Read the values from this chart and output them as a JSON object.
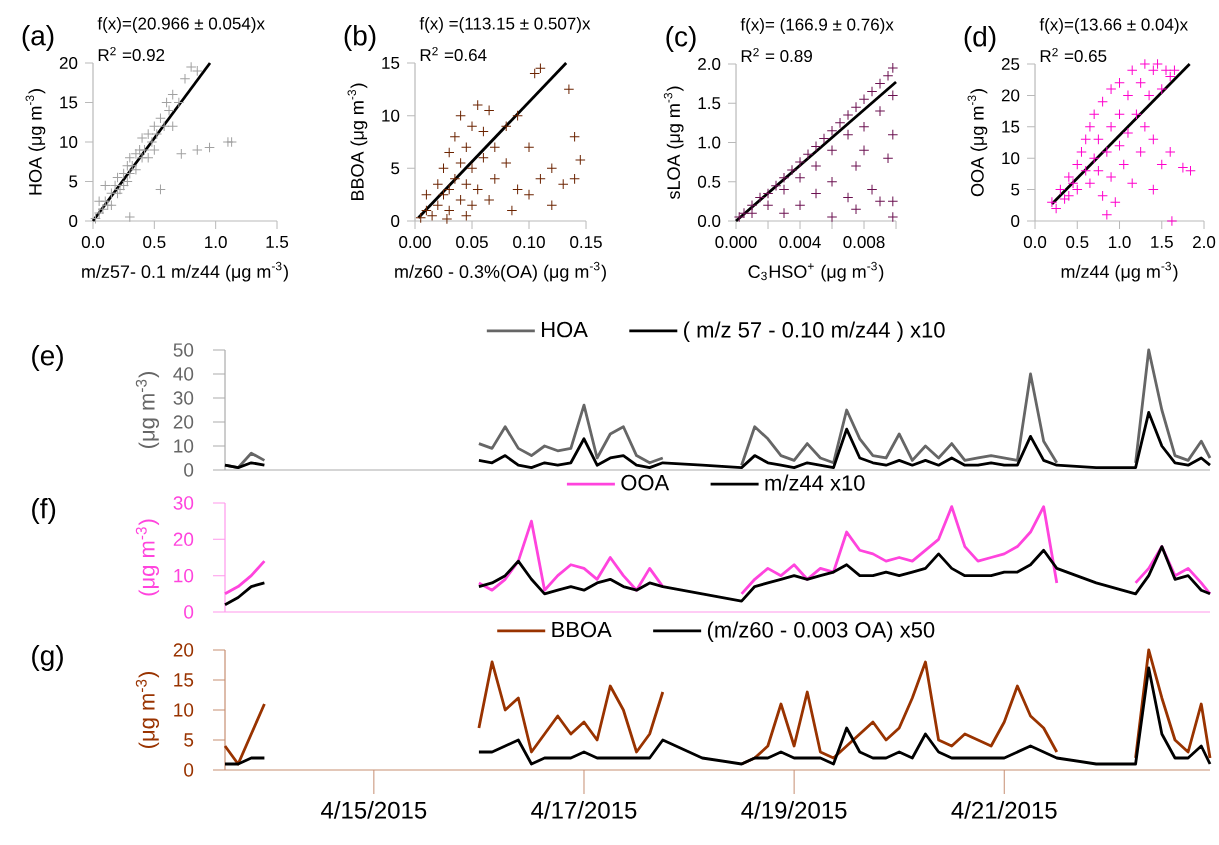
{
  "chart_data": [
    {
      "type": "scatter",
      "xlabel": "m/z57- 0.1 m/z44 (μg m$^{-3}$)",
      "ylabel": "HOA  (μg m$^{-3}$)",
      "annotations": [
        "(a)",
        "f(x)=(20.966 ± 0.054)x",
        "R$^{2}$ =0.92"
      ],
      "xlim": [
        0,
        1.5
      ],
      "ylim": [
        0,
        20
      ],
      "xticks": [
        {
          "value": 0,
          "label": "0.0"
        },
        0.5,
        {
          "value": 1,
          "label": "1.0"
        },
        1.5
      ],
      "yticks": [
        0,
        5,
        10,
        15,
        20
      ],
      "series": [
        {
          "type": "scatter",
          "marker": "cross",
          "color": "#a0a0a0",
          "x": [
            0.02,
            0.05,
            0.08,
            0.1,
            0.12,
            0.15,
            0.15,
            0.18,
            0.2,
            0.2,
            0.22,
            0.25,
            0.25,
            0.28,
            0.28,
            0.3,
            0.3,
            0.32,
            0.35,
            0.35,
            0.38,
            0.4,
            0.4,
            0.42,
            0.45,
            0.45,
            0.48,
            0.5,
            0.5,
            0.52,
            0.55,
            0.58,
            0.6,
            0.62,
            0.65,
            0.65,
            0.7,
            0.75,
            0.8,
            0.85,
            0.1,
            0.05,
            0.3,
            0.55,
            0.72,
            0.85,
            0.95,
            1.1,
            1.13
          ],
          "values": [
            0.3,
            1,
            1.5,
            2.5,
            2,
            3.5,
            2,
            4.5,
            3.5,
            5.5,
            4,
            6,
            4.5,
            5,
            7,
            6,
            8,
            7,
            8.5,
            6.5,
            9,
            8,
            10.5,
            9,
            11,
            8,
            10,
            12,
            9,
            11,
            13,
            12,
            15,
            14,
            12,
            16,
            15,
            18,
            19.5,
            19,
            4.5,
            2.5,
            0.5,
            4,
            8.5,
            9,
            9.3,
            10,
            10
          ]
        },
        {
          "type": "line",
          "color": "#000000",
          "x": [
            0,
            0.954
          ],
          "values": [
            0,
            20
          ]
        }
      ]
    },
    {
      "type": "scatter",
      "xlabel": "m/z60 - 0.3%(OA)  (μg m$^{-3}$)",
      "ylabel": "BBOA  (μg m$^{-3}$)",
      "annotations": [
        "(b)",
        "f(x) =(113.15 ± 0.507)x",
        "R$^{2}$ =0.64"
      ],
      "xlim": [
        0,
        0.15
      ],
      "ylim": [
        0,
        15
      ],
      "xticks": [
        {
          "value": 0,
          "label": "0.00"
        },
        0.05,
        {
          "value": 0.1,
          "label": "0.10"
        },
        0.15
      ],
      "yticks": [
        0,
        5,
        10,
        15
      ],
      "series": [
        {
          "type": "scatter",
          "marker": "cross",
          "color": "#6b2300",
          "x": [
            0.005,
            0.01,
            0.01,
            0.015,
            0.02,
            0.02,
            0.025,
            0.025,
            0.03,
            0.03,
            0.03,
            0.035,
            0.035,
            0.04,
            0.04,
            0.04,
            0.045,
            0.045,
            0.05,
            0.05,
            0.05,
            0.055,
            0.055,
            0.06,
            0.06,
            0.065,
            0.065,
            0.07,
            0.07,
            0.08,
            0.08,
            0.085,
            0.09,
            0.09,
            0.1,
            0.1,
            0.105,
            0.11,
            0.11,
            0.12,
            0.12,
            0.13,
            0.135,
            0.14,
            0.145,
            0.14,
            0.028,
            0.045
          ],
          "values": [
            0.3,
            1,
            2.5,
            0.5,
            1.5,
            3.5,
            2.5,
            5,
            1,
            3,
            6.5,
            4,
            8,
            2,
            5.5,
            10,
            3.5,
            7,
            1.5,
            5,
            9,
            3,
            11,
            6,
            8.5,
            2,
            10.5,
            4,
            7,
            5.5,
            9,
            1,
            3,
            10,
            7,
            2.5,
            14,
            14.5,
            4,
            5,
            1.5,
            3.5,
            12.5,
            8,
            5.8,
            4,
            0.2,
            0.5
          ]
        },
        {
          "type": "line",
          "color": "#000000",
          "x": [
            0.003,
            0.1326
          ],
          "values": [
            0.3,
            15
          ]
        }
      ]
    },
    {
      "type": "scatter",
      "xlabel": "C$_{3}$HSO$^{+}$ (μg m$^{-3}$)",
      "ylabel": "sLOA  (μg m$^{-3}$)",
      "annotations": [
        "(c)",
        "f(x)= (166.9 ± 0.76)x",
        "R$^{2}$ = 0.89"
      ],
      "xlim": [
        0,
        0.01
      ],
      "ylim": [
        0,
        2
      ],
      "xticks": [
        {
          "value": 0,
          "label": "0.000"
        },
        {
          "value": 0.002,
          "label": null
        },
        0.004,
        {
          "value": 0.006,
          "label": null
        },
        0.008,
        {
          "value": 0.01,
          "label": null
        }
      ],
      "yticks": [
        {
          "value": 0,
          "label": "0.0"
        },
        0.5,
        {
          "value": 1,
          "label": "1.0"
        },
        1.5,
        {
          "value": 2,
          "label": "2.0"
        }
      ],
      "series": [
        {
          "type": "scatter",
          "marker": "cross",
          "color": "#6b1050",
          "x": [
            0.0002,
            0.0005,
            0.001,
            0.001,
            0.0015,
            0.002,
            0.002,
            0.0025,
            0.003,
            0.003,
            0.0035,
            0.004,
            0.004,
            0.0045,
            0.005,
            0.005,
            0.0055,
            0.006,
            0.006,
            0.0065,
            0.007,
            0.007,
            0.0075,
            0.008,
            0.008,
            0.0085,
            0.009,
            0.009,
            0.0095,
            0.0098,
            0.0098,
            0.003,
            0.004,
            0.005,
            0.006,
            0.007,
            0.0075,
            0.008,
            0.0085,
            0.009,
            0.0095,
            0.0098,
            0.0098,
            0.0098,
            0.0075,
            0.006
          ],
          "values": [
            0.05,
            0.1,
            0.2,
            0.1,
            0.3,
            0.35,
            0.2,
            0.45,
            0.55,
            0.4,
            0.65,
            0.75,
            0.55,
            0.85,
            0.95,
            0.7,
            1.05,
            1.15,
            0.9,
            1.25,
            1.35,
            1.1,
            1.45,
            1.55,
            1.2,
            1.65,
            1.75,
            1.4,
            1.85,
            1.95,
            1.6,
            0.1,
            0.2,
            0.35,
            0.5,
            0.3,
            0.7,
            0.9,
            0.4,
            0.25,
            0.8,
            0.05,
            0.25,
            1.1,
            0.15,
            0.05
          ]
        },
        {
          "type": "line",
          "color": "#000000",
          "x": [
            0,
            0.01
          ],
          "values": [
            0,
            1.77
          ]
        }
      ]
    },
    {
      "type": "scatter",
      "xlabel": "m/z44   (μg m$^{-3}$)",
      "ylabel": "OOA (μg m$^{-3}$)",
      "annotations": [
        "(d)",
        "f(x)=(13.66 ± 0.04)x",
        "R$^{2}$ =0.65"
      ],
      "xlim": [
        0,
        2
      ],
      "ylim": [
        0,
        25
      ],
      "xticks": [
        {
          "value": 0,
          "label": "0.0"
        },
        0.5,
        {
          "value": 1,
          "label": "1.0"
        },
        1.5,
        {
          "value": 2,
          "label": "2.0"
        }
      ],
      "yticks": [
        0,
        5,
        10,
        15,
        20,
        25
      ],
      "series": [
        {
          "type": "scatter",
          "marker": "cross",
          "color": "#ff00cc",
          "x": [
            0.2,
            0.25,
            0.3,
            0.35,
            0.4,
            0.4,
            0.45,
            0.5,
            0.5,
            0.55,
            0.6,
            0.6,
            0.65,
            0.65,
            0.7,
            0.7,
            0.75,
            0.75,
            0.8,
            0.8,
            0.85,
            0.85,
            0.9,
            0.9,
            0.9,
            0.95,
            1.0,
            1.0,
            1.0,
            1.05,
            1.1,
            1.1,
            1.15,
            1.15,
            1.2,
            1.25,
            1.25,
            1.3,
            1.3,
            1.35,
            1.4,
            1.4,
            1.45,
            1.5,
            1.55,
            1.6,
            1.6,
            1.65,
            1.5,
            1.4,
            1.75,
            1.84,
            1.62
          ],
          "values": [
            3,
            2,
            5,
            3.5,
            7,
            4,
            6,
            9,
            5,
            11,
            8,
            13,
            6,
            15,
            10,
            17,
            8,
            13,
            19,
            4,
            11,
            1,
            15,
            21,
            7,
            3,
            12,
            22,
            17,
            9,
            20,
            14,
            24,
            6,
            17,
            22,
            11,
            25,
            15,
            20,
            24,
            13,
            25,
            21,
            24,
            23,
            11,
            24,
            9,
            5,
            8.5,
            8,
            0
          ]
        },
        {
          "type": "line",
          "color": "#000000",
          "x": [
            0.2,
            1.83
          ],
          "values": [
            2.7,
            25
          ]
        }
      ]
    },
    {
      "type": "line",
      "ylabel": "(μg m$^{-3}$)",
      "annotations": [
        "(e)"
      ],
      "legend": "top",
      "tick_labels": "y",
      "xlim": [
        "2015-04-13T14:00",
        "2015-04-22T23:00"
      ],
      "ylim": [
        0,
        50
      ],
      "yticks": [
        0,
        10,
        20,
        30,
        40,
        50
      ],
      "x": [
        "2015-04-13T14:00",
        "2015-04-13T17:00",
        "2015-04-13T20:00",
        "2015-04-13T23:00",
        "2015-04-14T12:00",
        "2015-04-16T00:00",
        "2015-04-16T03:00",
        "2015-04-16T06:00",
        "2015-04-16T09:00",
        "2015-04-16T12:00",
        "2015-04-16T15:00",
        "2015-04-16T18:00",
        "2015-04-16T21:00",
        "2015-04-17T00:00",
        "2015-04-17T03:00",
        "2015-04-17T06:00",
        "2015-04-17T09:00",
        "2015-04-17T12:00",
        "2015-04-17T15:00",
        "2015-04-17T18:00",
        "2015-04-18T03:00",
        "2015-04-18T12:00",
        "2015-04-18T15:00",
        "2015-04-18T18:00",
        "2015-04-18T21:00",
        "2015-04-19T00:00",
        "2015-04-19T03:00",
        "2015-04-19T06:00",
        "2015-04-19T09:00",
        "2015-04-19T12:00",
        "2015-04-19T15:00",
        "2015-04-19T18:00",
        "2015-04-19T21:00",
        "2015-04-20T00:00",
        "2015-04-20T03:00",
        "2015-04-20T06:00",
        "2015-04-20T09:00",
        "2015-04-20T12:00",
        "2015-04-20T15:00",
        "2015-04-20T18:00",
        "2015-04-20T21:00",
        "2015-04-21T00:00",
        "2015-04-21T03:00",
        "2015-04-21T06:00",
        "2015-04-21T09:00",
        "2015-04-21T12:00",
        "2015-04-21T21:00",
        "2015-04-22T06:00",
        "2015-04-22T09:00",
        "2015-04-22T12:00",
        "2015-04-22T15:00",
        "2015-04-22T18:00",
        "2015-04-22T21:00",
        "2015-04-22T23:00"
      ],
      "series": [
        {
          "name": "HOA",
          "color": "#666666",
          "values": [
            2,
            1,
            7,
            4,
            null,
            11,
            9,
            18,
            9,
            6,
            10,
            8,
            9,
            27,
            5,
            15,
            18,
            6,
            3,
            5,
            null,
            2,
            18,
            13,
            6,
            4,
            11,
            5,
            3,
            25,
            13,
            6,
            5,
            15,
            4,
            10,
            5,
            11,
            4,
            5,
            6,
            5,
            4,
            40,
            12,
            3,
            null,
            3,
            50,
            25,
            6,
            4,
            12,
            5
          ]
        },
        {
          "name": "( m/z 57 - 0.10 m/z44 ) x10",
          "color": "#000000",
          "values": [
            2,
            1,
            3,
            2,
            null,
            4,
            3,
            6,
            2,
            1,
            3,
            2,
            3,
            13,
            2,
            5,
            6,
            2,
            1,
            3,
            2,
            1,
            6,
            3,
            2,
            1,
            3,
            2,
            1,
            17,
            5,
            3,
            2,
            4,
            2,
            4,
            2,
            5,
            2,
            2,
            3,
            2,
            2,
            14,
            4,
            2,
            1,
            1,
            24,
            10,
            3,
            2,
            5,
            2
          ]
        }
      ]
    },
    {
      "type": "line",
      "ylabel": "(μg m$^{-3}$)",
      "annotations": [
        "(f)"
      ],
      "legend": "top",
      "tick_labels": "y",
      "xlim": [
        "2015-04-13T14:00",
        "2015-04-22T23:00"
      ],
      "ylim": [
        0,
        30
      ],
      "yticks": [
        0,
        10,
        20,
        30
      ],
      "x": [
        "2015-04-13T14:00",
        "2015-04-13T17:00",
        "2015-04-13T20:00",
        "2015-04-13T23:00",
        "2015-04-14T12:00",
        "2015-04-16T00:00",
        "2015-04-16T03:00",
        "2015-04-16T06:00",
        "2015-04-16T09:00",
        "2015-04-16T12:00",
        "2015-04-16T15:00",
        "2015-04-16T18:00",
        "2015-04-16T21:00",
        "2015-04-17T00:00",
        "2015-04-17T03:00",
        "2015-04-17T06:00",
        "2015-04-17T09:00",
        "2015-04-17T12:00",
        "2015-04-17T15:00",
        "2015-04-17T18:00",
        "2015-04-18T03:00",
        "2015-04-18T12:00",
        "2015-04-18T15:00",
        "2015-04-18T18:00",
        "2015-04-18T21:00",
        "2015-04-19T00:00",
        "2015-04-19T03:00",
        "2015-04-19T06:00",
        "2015-04-19T09:00",
        "2015-04-19T12:00",
        "2015-04-19T15:00",
        "2015-04-19T18:00",
        "2015-04-19T21:00",
        "2015-04-20T00:00",
        "2015-04-20T03:00",
        "2015-04-20T06:00",
        "2015-04-20T09:00",
        "2015-04-20T12:00",
        "2015-04-20T15:00",
        "2015-04-20T18:00",
        "2015-04-20T21:00",
        "2015-04-21T00:00",
        "2015-04-21T03:00",
        "2015-04-21T06:00",
        "2015-04-21T09:00",
        "2015-04-21T12:00",
        "2015-04-21T21:00",
        "2015-04-22T06:00",
        "2015-04-22T09:00",
        "2015-04-22T12:00",
        "2015-04-22T15:00",
        "2015-04-22T18:00",
        "2015-04-22T21:00",
        "2015-04-22T23:00"
      ],
      "series": [
        {
          "name": "OOA",
          "color": "#ff44dd",
          "values": [
            5,
            7,
            10,
            14,
            null,
            8,
            6,
            9,
            14,
            25,
            6,
            10,
            13,
            12,
            9,
            15,
            10,
            6,
            12,
            7,
            null,
            5,
            9,
            12,
            10,
            13,
            9,
            12,
            11,
            22,
            17,
            16,
            14,
            15,
            14,
            17,
            20,
            29,
            18,
            14,
            15,
            16,
            18,
            22,
            29,
            8,
            null,
            8,
            12,
            18,
            10,
            12,
            8,
            5
          ]
        },
        {
          "name": "m/z44 x10",
          "color": "#000000",
          "values": [
            2,
            4,
            7,
            8,
            null,
            7,
            8,
            10,
            14,
            9,
            5,
            6,
            7,
            6,
            8,
            9,
            7,
            6,
            8,
            7,
            5,
            3,
            7,
            8,
            9,
            10,
            9,
            10,
            11,
            13,
            10,
            10,
            11,
            10,
            11,
            12,
            16,
            12,
            10,
            10,
            10,
            11,
            11,
            13,
            17,
            12,
            8,
            5,
            10,
            18,
            9,
            10,
            6,
            5
          ]
        }
      ]
    },
    {
      "type": "line",
      "ylabel": "(μg m$^{-3}$)",
      "annotations": [
        "(g)"
      ],
      "legend": "top",
      "xlim": [
        "2015-04-13T14:00",
        "2015-04-22T23:00"
      ],
      "ylim": [
        0,
        20
      ],
      "yticks": [
        0,
        5,
        10,
        15,
        20
      ],
      "xticks": [
        {
          "value": "2015-04-15",
          "label": "4/15/2015"
        },
        {
          "value": "2015-04-17",
          "label": "4/17/2015"
        },
        {
          "value": "2015-04-19",
          "label": "4/19/2015"
        },
        {
          "value": "2015-04-21",
          "label": "4/21/2015"
        }
      ],
      "x": [
        "2015-04-13T14:00",
        "2015-04-13T17:00",
        "2015-04-13T20:00",
        "2015-04-13T23:00",
        "2015-04-14T12:00",
        "2015-04-16T00:00",
        "2015-04-16T03:00",
        "2015-04-16T06:00",
        "2015-04-16T09:00",
        "2015-04-16T12:00",
        "2015-04-16T15:00",
        "2015-04-16T18:00",
        "2015-04-16T21:00",
        "2015-04-17T00:00",
        "2015-04-17T03:00",
        "2015-04-17T06:00",
        "2015-04-17T09:00",
        "2015-04-17T12:00",
        "2015-04-17T15:00",
        "2015-04-17T18:00",
        "2015-04-18T03:00",
        "2015-04-18T12:00",
        "2015-04-18T15:00",
        "2015-04-18T18:00",
        "2015-04-18T21:00",
        "2015-04-19T00:00",
        "2015-04-19T03:00",
        "2015-04-19T06:00",
        "2015-04-19T09:00",
        "2015-04-19T12:00",
        "2015-04-19T15:00",
        "2015-04-19T18:00",
        "2015-04-19T21:00",
        "2015-04-20T00:00",
        "2015-04-20T03:00",
        "2015-04-20T06:00",
        "2015-04-20T09:00",
        "2015-04-20T12:00",
        "2015-04-20T15:00",
        "2015-04-20T18:00",
        "2015-04-20T21:00",
        "2015-04-21T00:00",
        "2015-04-21T03:00",
        "2015-04-21T06:00",
        "2015-04-21T09:00",
        "2015-04-21T12:00",
        "2015-04-21T21:00",
        "2015-04-22T06:00",
        "2015-04-22T09:00",
        "2015-04-22T12:00",
        "2015-04-22T15:00",
        "2015-04-22T18:00",
        "2015-04-22T21:00",
        "2015-04-22T23:00"
      ],
      "series": [
        {
          "name": "BBOA",
          "color": "#993300",
          "values": [
            4,
            1,
            6,
            11,
            null,
            7,
            18,
            10,
            12,
            3,
            6,
            9,
            6,
            8,
            5,
            14,
            10,
            3,
            6,
            13,
            null,
            1,
            2,
            4,
            11,
            4,
            13,
            3,
            2,
            4,
            6,
            8,
            5,
            7,
            12,
            18,
            5,
            4,
            6,
            5,
            4,
            8,
            14,
            9,
            7,
            3,
            null,
            2,
            20,
            12,
            5,
            3,
            11,
            2
          ]
        },
        {
          "name": "(m/z60 - 0.003 OA)  x50",
          "color": "#000000",
          "values": [
            1,
            1,
            2,
            2,
            null,
            3,
            3,
            4,
            5,
            1,
            2,
            2,
            2,
            3,
            2,
            2,
            2,
            2,
            2,
            5,
            2,
            1,
            2,
            2,
            3,
            2,
            2,
            2,
            1,
            7,
            3,
            2,
            2,
            3,
            2,
            6,
            3,
            2,
            2,
            2,
            2,
            2,
            3,
            4,
            3,
            2,
            1,
            1,
            17,
            6,
            2,
            2,
            4,
            1
          ]
        }
      ]
    }
  ]
}
